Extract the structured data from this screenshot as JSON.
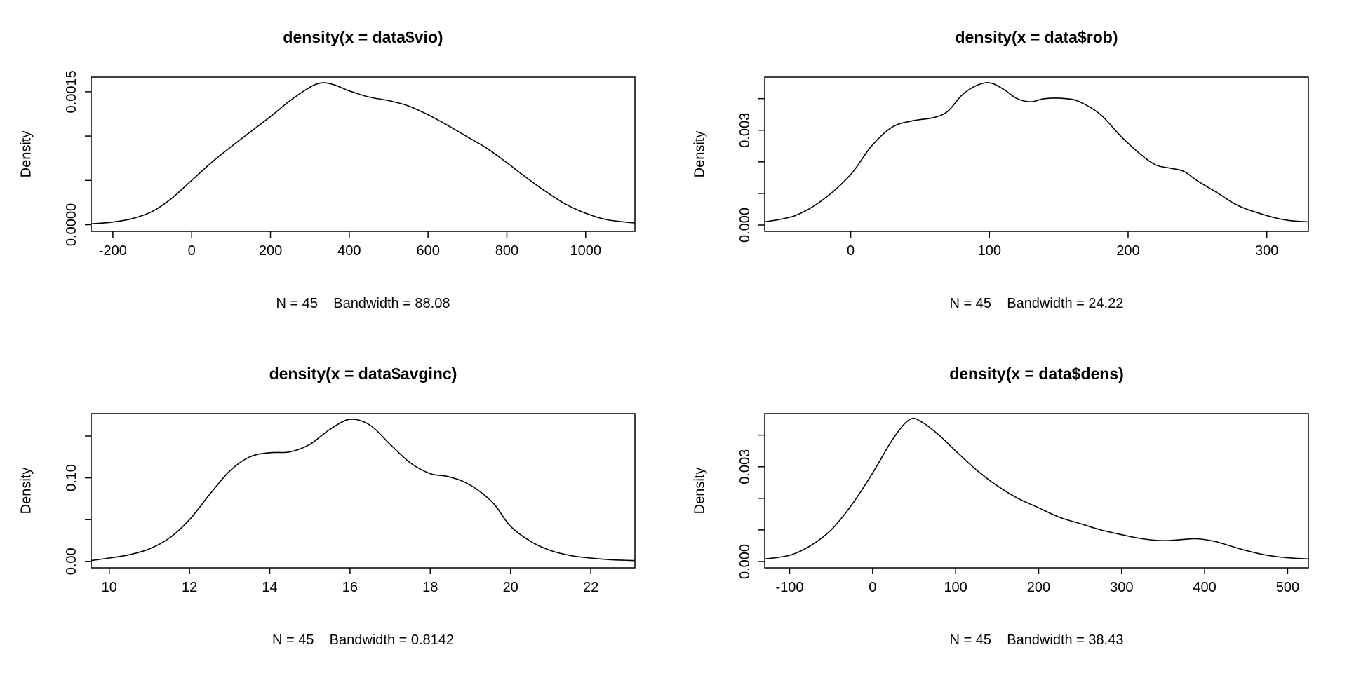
{
  "page": {
    "background": "#ffffff",
    "foreground": "#000000"
  },
  "chart_data": [
    {
      "type": "line",
      "title": "density(x = data$vio)",
      "xlabel": "N = 45    Bandwidth = 88.08",
      "ylabel": "Density",
      "line_color": "#000000",
      "grid": false,
      "legend": null,
      "xlim": [
        -255,
        1125
      ],
      "ylim": [
        -7.5e-05,
        0.001665
      ],
      "xticks": {
        "values": [
          -200,
          0,
          200,
          400,
          600,
          800,
          1000
        ],
        "labels": [
          "-200",
          "0",
          "200",
          "400",
          "600",
          "800",
          "1000"
        ]
      },
      "yticks": {
        "values": [
          0,
          0.0005,
          0.001,
          0.0015
        ],
        "labels": [
          "0.0000",
          "",
          "",
          "0.0015"
        ]
      },
      "x": [
        -255,
        -200,
        -150,
        -100,
        -50,
        0,
        50,
        100,
        150,
        200,
        250,
        300,
        330,
        360,
        400,
        450,
        500,
        550,
        600,
        650,
        700,
        750,
        800,
        850,
        900,
        950,
        1000,
        1050,
        1100,
        1125
      ],
      "y": [
        1e-05,
        3e-05,
        7e-05,
        0.00015,
        0.0003,
        0.0005,
        0.0007,
        0.00088,
        0.00105,
        0.00122,
        0.0014,
        0.00155,
        0.0016,
        0.00158,
        0.00151,
        0.00144,
        0.0014,
        0.00134,
        0.00124,
        0.00112,
        0.00099,
        0.00086,
        0.0007,
        0.00053,
        0.00037,
        0.00023,
        0.00013,
        6e-05,
        3e-05,
        2e-05
      ]
    },
    {
      "type": "line",
      "title": "density(x = data$rob)",
      "xlabel": "N = 45    Bandwidth = 24.22",
      "ylabel": "Density",
      "line_color": "#000000",
      "grid": false,
      "legend": null,
      "xlim": [
        -62,
        330
      ],
      "ylim": [
        -0.0002,
        0.00468
      ],
      "xticks": {
        "values": [
          0,
          100,
          200,
          300
        ],
        "labels": [
          "0",
          "100",
          "200",
          "300"
        ]
      },
      "yticks": {
        "values": [
          0,
          0.001,
          0.002,
          0.003,
          0.004
        ],
        "labels": [
          "0.000",
          "",
          "",
          "0.003",
          ""
        ]
      },
      "x": [
        -62,
        -40,
        -20,
        0,
        15,
        30,
        45,
        60,
        70,
        80,
        90,
        100,
        110,
        120,
        130,
        140,
        155,
        165,
        180,
        195,
        210,
        220,
        230,
        240,
        250,
        265,
        280,
        300,
        315,
        330
      ],
      "y": [
        0.0001,
        0.0003,
        0.0008,
        0.0016,
        0.0025,
        0.0031,
        0.0033,
        0.0034,
        0.0036,
        0.0041,
        0.0044,
        0.0045,
        0.0043,
        0.004,
        0.0039,
        0.004,
        0.004,
        0.0039,
        0.0035,
        0.0028,
        0.0022,
        0.0019,
        0.0018,
        0.0017,
        0.0014,
        0.001,
        0.0006,
        0.0003,
        0.00015,
        0.0001
      ]
    },
    {
      "type": "line",
      "title": "density(x = data$avginc)",
      "xlabel": "N = 45    Bandwidth = 0.8142",
      "ylabel": "Density",
      "line_color": "#000000",
      "grid": false,
      "legend": null,
      "xlim": [
        9.55,
        23.1
      ],
      "ylim": [
        -0.0077,
        0.1768
      ],
      "xticks": {
        "values": [
          10,
          12,
          14,
          16,
          18,
          20,
          22
        ],
        "labels": [
          "10",
          "12",
          "14",
          "16",
          "18",
          "20",
          "22"
        ]
      },
      "yticks": {
        "values": [
          0,
          0.05,
          0.1,
          0.15
        ],
        "labels": [
          "0.00",
          "",
          "0.10",
          ""
        ]
      },
      "x": [
        9.55,
        10,
        10.5,
        11,
        11.5,
        12,
        12.5,
        13,
        13.5,
        14,
        14.5,
        15,
        15.5,
        16,
        16.5,
        17,
        17.5,
        18,
        18.4,
        18.8,
        19.2,
        19.6,
        20,
        20.5,
        21,
        21.5,
        22,
        22.5,
        23.1
      ],
      "y": [
        0.001,
        0.004,
        0.008,
        0.015,
        0.028,
        0.05,
        0.08,
        0.108,
        0.125,
        0.13,
        0.131,
        0.14,
        0.158,
        0.17,
        0.163,
        0.14,
        0.118,
        0.105,
        0.102,
        0.096,
        0.085,
        0.068,
        0.042,
        0.024,
        0.013,
        0.007,
        0.004,
        0.002,
        0.001
      ]
    },
    {
      "type": "line",
      "title": "density(x = data$dens)",
      "xlabel": "N = 45    Bandwidth = 38.43",
      "ylabel": "Density",
      "line_color": "#000000",
      "grid": false,
      "legend": null,
      "xlim": [
        -130,
        525
      ],
      "ylim": [
        -0.0002,
        0.00468
      ],
      "xticks": {
        "values": [
          -100,
          0,
          100,
          200,
          300,
          400,
          500
        ],
        "labels": [
          "-100",
          "0",
          "100",
          "200",
          "300",
          "400",
          "500"
        ]
      },
      "yticks": {
        "values": [
          0,
          0.001,
          0.002,
          0.003,
          0.004
        ],
        "labels": [
          "0.000",
          "",
          "",
          "0.003",
          ""
        ]
      },
      "x": [
        -130,
        -100,
        -75,
        -50,
        -25,
        0,
        25,
        45,
        60,
        80,
        100,
        125,
        150,
        175,
        200,
        225,
        250,
        275,
        300,
        325,
        350,
        375,
        390,
        410,
        430,
        450,
        475,
        500,
        525
      ],
      "y": [
        8e-05,
        0.0002,
        0.0005,
        0.001,
        0.0018,
        0.0028,
        0.0039,
        0.0045,
        0.0044,
        0.004,
        0.0035,
        0.0029,
        0.0024,
        0.002,
        0.0017,
        0.0014,
        0.0012,
        0.001,
        0.00085,
        0.00072,
        0.00066,
        0.0007,
        0.00072,
        0.00065,
        0.0005,
        0.00035,
        0.0002,
        0.00012,
        8e-05
      ]
    }
  ]
}
